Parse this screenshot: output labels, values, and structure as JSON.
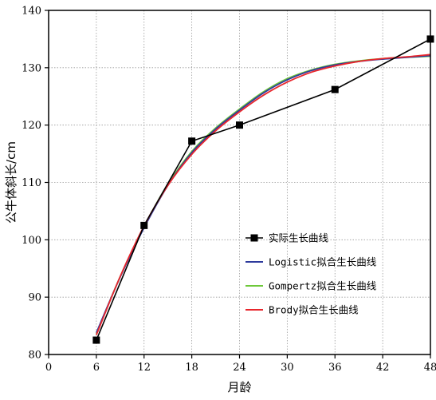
{
  "chart_data": {
    "type": "line",
    "xlabel": "月龄",
    "ylabel": "公牛体斜长/cm",
    "xlim": [
      0,
      48
    ],
    "ylim": [
      80,
      140
    ],
    "xticks": [
      0,
      6,
      12,
      18,
      24,
      30,
      36,
      42,
      48
    ],
    "yticks": [
      80,
      90,
      100,
      110,
      120,
      130,
      140
    ],
    "grid": "dotted",
    "legend_position": "bottom-right",
    "series": [
      {
        "name": "实际生长曲线",
        "style": "line-with-square-markers",
        "color": "#000000",
        "x": [
          6,
          12,
          18,
          24,
          36,
          48
        ],
        "y": [
          82.5,
          102.5,
          117.2,
          120,
          126.2,
          135
        ]
      },
      {
        "name": "Logistic拟合生长曲线",
        "style": "smooth",
        "color": "#2d3a9c",
        "x": [
          6,
          9,
          12,
          15,
          18,
          21,
          24,
          27,
          30,
          33,
          36,
          39,
          42,
          45,
          48
        ],
        "y": [
          83.8,
          93.5,
          102.1,
          109.5,
          115.2,
          119.3,
          122.6,
          125.6,
          127.9,
          129.5,
          130.5,
          131.1,
          131.5,
          131.8,
          132.1
        ]
      },
      {
        "name": "Gompertz拟合生长曲线",
        "style": "smooth",
        "color": "#6ec83a",
        "x": [
          6,
          9,
          12,
          15,
          18,
          21,
          24,
          27,
          30,
          33,
          36,
          39,
          42,
          45,
          48
        ],
        "y": [
          83.6,
          93.6,
          102.3,
          109.7,
          115.4,
          119.5,
          122.8,
          125.8,
          128.1,
          129.6,
          130.6,
          131.2,
          131.6,
          131.8,
          132.0
        ]
      },
      {
        "name": "Brody拟合生长曲线",
        "style": "smooth",
        "color": "#e8262c",
        "x": [
          6,
          9,
          12,
          15,
          18,
          21,
          24,
          27,
          30,
          33,
          36,
          39,
          42,
          45,
          48
        ],
        "y": [
          83.4,
          93.6,
          102.4,
          109.5,
          114.9,
          119.0,
          122.3,
          125.2,
          127.5,
          129.2,
          130.3,
          131.1,
          131.6,
          131.9,
          132.3
        ]
      }
    ]
  }
}
